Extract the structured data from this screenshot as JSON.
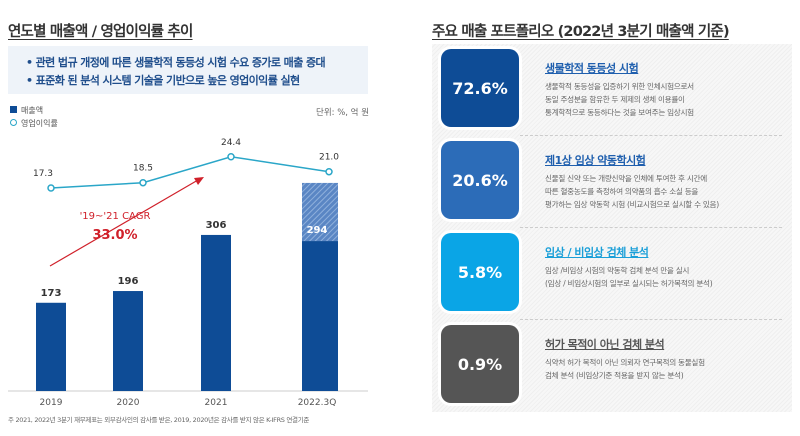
{
  "left": {
    "title": "연도별 매출액 / 영업이익률 추이",
    "bullets": [
      "• 관련 법규 개정에 따른 생물학적 동등성 시험 수요 증가로 매출 증대",
      "• 표준화 된 분석 시스템 기술을 기반으로 높은 영업이익률 실현"
    ],
    "footnote": "주 2021, 2022년 3분기 재무제표는 외부감사인의 감사를 받은, 2019, 2020년은 감사를 받지 않은 K-IFRS 연결기준"
  },
  "chart_data": {
    "type": "bar+line",
    "categories": [
      "2019",
      "2020",
      "2021",
      "2022.3Q"
    ],
    "unit": "단위: %, 억 원",
    "series": [
      {
        "name": "매출액",
        "type": "bar",
        "values": [
          173,
          196,
          306,
          294
        ],
        "color": "#0e4c96"
      },
      {
        "name": "영업이익률",
        "type": "line",
        "values": [
          17.3,
          18.5,
          24.4,
          21.0
        ],
        "color": "#2aa6c8"
      }
    ],
    "projected_bar": {
      "category": "2022.3Q",
      "value": 408,
      "style": "hatched"
    },
    "annotation": {
      "label": "'19~'21 CAGR",
      "value": "33.0%",
      "color": "#d0202a"
    },
    "legend": "top-left"
  },
  "right": {
    "title": "주요 매출 포트폴리오 (2022년 3분기 매출액 기준)",
    "items": [
      {
        "pct": "72.6%",
        "title": "생물학적 동등성 시험",
        "color": "#0e4c96",
        "title_color": "#1f5fae",
        "desc": [
          "생물학적 동등성을 입증하기 위한 인체시험으로서",
          "동일 주성분을 함유한 두 제제의 생체 이용률이",
          "통계학적으로 동등하다는 것을 보여주는 임상시험"
        ]
      },
      {
        "pct": "20.6%",
        "title": "제1상 임상 약동학시험",
        "color": "#2c6cb8",
        "title_color": "#1f5fae",
        "desc": [
          "신물질 신약 또는 개량신약을 인체에 투여한 후 시간에",
          "따른 혈중농도를 측정하여 의약품의 흡수 소실 등을",
          "평가하는 임상 약동학 시험 (비교시험으로 실시할 수 있음)"
        ]
      },
      {
        "pct": "5.8%",
        "title": "임상 / 비임상 검체 분석",
        "color": "#0aa5e6",
        "title_color": "#1a9fd8",
        "desc": [
          "임상 /비임상 시험의 약동학 검체 분석 만을 실시",
          "(임상 / 비임상시험의 일부로 실시되는 허가목적의 분석)"
        ]
      },
      {
        "pct": "0.9%",
        "title": "허가 목적이 아닌 검체 분석",
        "color": "#555555",
        "title_color": "#555555",
        "desc": [
          "식약처 허가 목적이 아닌 의뢰자 연구목적의 동물실험",
          "검체 분석 (비임상기준 적용을 받지 않는 분석)"
        ]
      }
    ]
  }
}
